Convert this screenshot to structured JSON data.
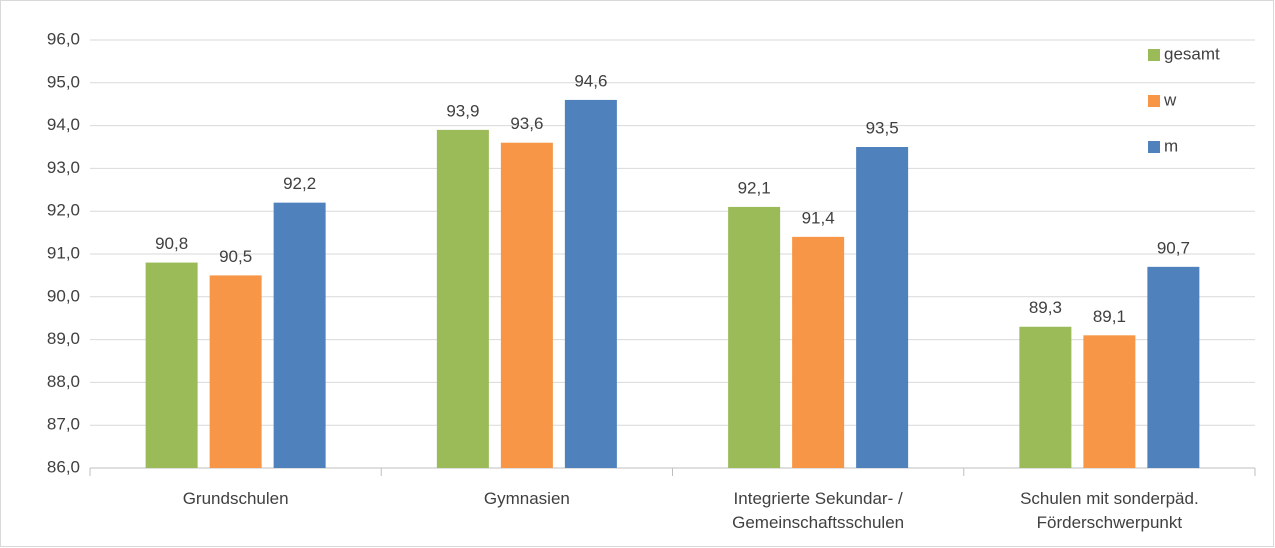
{
  "chart_data": {
    "type": "bar",
    "categories": [
      "Grundschulen",
      "Gymnasien",
      "Integrierte Sekundar- /\nGemeinschaftsschulen",
      "Schulen mit sonderpäd.\nFörderschwerpunkt"
    ],
    "series": [
      {
        "name": "gesamt",
        "color": "#9bbb59",
        "values": [
          90.8,
          93.9,
          92.1,
          89.3
        ],
        "value_labels": [
          "90,8",
          "93,9",
          "92,1",
          "89,3"
        ]
      },
      {
        "name": "w",
        "color": "#f79646",
        "values": [
          90.5,
          93.6,
          91.4,
          89.1
        ],
        "value_labels": [
          "90,5",
          "93,6",
          "91,4",
          "89,1"
        ]
      },
      {
        "name": "m",
        "color": "#4f81bd",
        "values": [
          92.2,
          94.6,
          93.5,
          90.7
        ],
        "value_labels": [
          "92,2",
          "94,6",
          "93,5",
          "90,7"
        ]
      }
    ],
    "ylim": [
      86,
      96
    ],
    "yticks": [
      {
        "value": 86,
        "label": "86,0"
      },
      {
        "value": 87,
        "label": "87,0"
      },
      {
        "value": 88,
        "label": "88,0"
      },
      {
        "value": 89,
        "label": "89,0"
      },
      {
        "value": 90,
        "label": "90,0"
      },
      {
        "value": 91,
        "label": "91,0"
      },
      {
        "value": 92,
        "label": "92,0"
      },
      {
        "value": 93,
        "label": "93,0"
      },
      {
        "value": 94,
        "label": "94,0"
      },
      {
        "value": 95,
        "label": "95,0"
      },
      {
        "value": 96,
        "label": "96,0"
      }
    ],
    "grid": true,
    "legend": "top-right"
  }
}
